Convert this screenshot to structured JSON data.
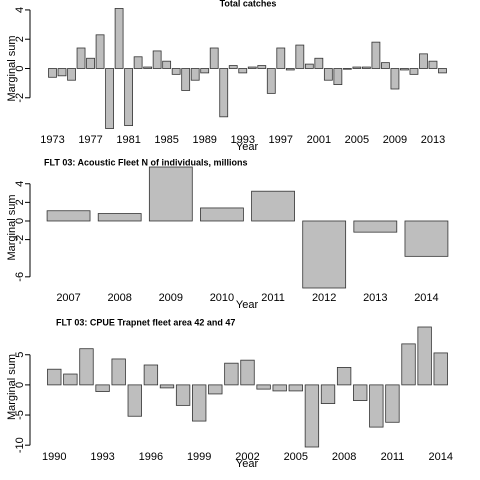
{
  "chart_data": [
    {
      "type": "bar",
      "title": "Total catches",
      "xlabel": "Year",
      "ylabel": "Marginal sum",
      "x": [
        1973,
        1974,
        1975,
        1976,
        1977,
        1978,
        1979,
        1980,
        1981,
        1982,
        1983,
        1984,
        1985,
        1986,
        1987,
        1988,
        1989,
        1990,
        1991,
        1992,
        1993,
        1994,
        1995,
        1996,
        1997,
        1998,
        1999,
        2000,
        2001,
        2002,
        2003,
        2004,
        2005,
        2006,
        2007,
        2008,
        2009,
        2010,
        2011,
        2012,
        2013,
        2014
      ],
      "values": [
        -0.6,
        -0.5,
        -0.8,
        1.4,
        0.7,
        2.3,
        -4.1,
        4.1,
        -3.9,
        0.8,
        0.1,
        1.2,
        0.5,
        -0.4,
        -1.5,
        -0.8,
        -0.3,
        1.4,
        -3.3,
        0.2,
        -0.3,
        0.1,
        0.2,
        -1.7,
        1.4,
        -0.1,
        1.6,
        0.3,
        0.7,
        -0.8,
        -1.1,
        -0.05,
        0.1,
        0.1,
        1.8,
        0.4,
        -1.4,
        -0.1,
        -0.4,
        1.0,
        0.5,
        -0.3
      ],
      "color": "#bebebe",
      "xlim": [
        1972,
        2015
      ],
      "xticks": [
        1973,
        1977,
        1981,
        1985,
        1989,
        1993,
        1997,
        2001,
        2005,
        2009,
        2013
      ],
      "ylim": [
        -4.2,
        4.2
      ],
      "yticks": [
        -2,
        0,
        2,
        4
      ]
    },
    {
      "type": "bar",
      "title": "FLT 03: Acoustic Fleet   N of individuals, millions",
      "xlabel": "Year",
      "ylabel": "Marginal sum",
      "x": [
        2007,
        2008,
        2009,
        2010,
        2011,
        2012,
        2013,
        2014
      ],
      "values": [
        1.1,
        0.8,
        5.8,
        1.4,
        3.2,
        -7.2,
        -1.2,
        -3.8
      ],
      "color": "#bebebe",
      "xlim": [
        2006.5,
        2014.5
      ],
      "xticks": [
        2007,
        2008,
        2009,
        2010,
        2011,
        2012,
        2013,
        2014
      ],
      "ylim": [
        -7.2,
        5.8
      ],
      "yticks": [
        -6,
        -2,
        0,
        2,
        4
      ]
    },
    {
      "type": "bar",
      "title": "FLT 03: CPUE Trapnet fleet area 42 and 47",
      "xlabel": "Year",
      "ylabel": "Marginal sum",
      "x": [
        1990,
        1991,
        1992,
        1993,
        1994,
        1995,
        1996,
        1997,
        1998,
        1999,
        2000,
        2001,
        2002,
        2003,
        2004,
        2005,
        2006,
        2007,
        2008,
        2009,
        2010,
        2011,
        2012,
        2013,
        2014
      ],
      "values": [
        2.6,
        1.8,
        6,
        -1.1,
        4.3,
        -5.2,
        3.3,
        -0.5,
        -3.4,
        -6,
        -1.5,
        3.6,
        4.1,
        -0.7,
        -1,
        -1,
        -10.3,
        -3.1,
        2.9,
        -2.6,
        -7,
        -6.2,
        6.8,
        9.6,
        5.3
      ],
      "color": "#bebebe",
      "xlim": [
        1989.3,
        2014.7
      ],
      "xticks": [
        1990,
        1993,
        1996,
        1999,
        2002,
        2005,
        2008,
        2011,
        2014
      ],
      "ylim": [
        -10.3,
        9.6
      ],
      "yticks": [
        -10,
        -5,
        0,
        5
      ]
    }
  ]
}
